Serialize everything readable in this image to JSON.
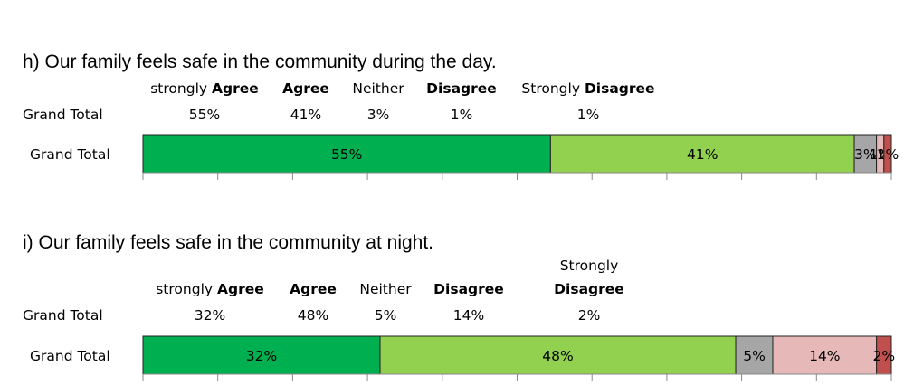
{
  "chart_data": [
    {
      "type": "bar",
      "orientation": "horizontal-stacked-100",
      "title": "h) Our family feels safe in the community during the day.",
      "row_label": "Grand Total",
      "categories": [
        {
          "prefix": "strongly ",
          "bold": "Agree",
          "value": 55,
          "color": "#00b050",
          "label": "55%"
        },
        {
          "prefix": "",
          "bold": "Agree",
          "value": 41,
          "color": "#92d050",
          "label": "41%"
        },
        {
          "prefix": "Neither",
          "bold": "",
          "value": 3,
          "color": "#a6a6a6",
          "label": "3%"
        },
        {
          "prefix": "",
          "bold": "Disagree",
          "value": 1,
          "color": "#e6b9b8",
          "label": "1%"
        },
        {
          "prefix": "Strongly ",
          "bold": "Disagree",
          "value": 1,
          "color": "#c0504d",
          "label": "1%"
        }
      ],
      "table_row_label": "Grand Total",
      "xlim": [
        0,
        100
      ]
    },
    {
      "type": "bar",
      "orientation": "horizontal-stacked-100",
      "title": "i) Our family feels safe in the community at night.",
      "row_label": "Grand Total",
      "categories": [
        {
          "prefix": "strongly ",
          "bold": "Agree",
          "value": 32,
          "color": "#00b050",
          "label": "32%"
        },
        {
          "prefix": "",
          "bold": "Agree",
          "value": 48,
          "color": "#92d050",
          "label": "48%"
        },
        {
          "prefix": "Neither",
          "bold": "",
          "value": 5,
          "color": "#a6a6a6",
          "label": "5%"
        },
        {
          "prefix": "",
          "bold": "Disagree",
          "value": 14,
          "color": "#e6b9b8",
          "label": "14%"
        },
        {
          "prefix": "Strongly",
          "bold": "Disagree",
          "value": 2,
          "color": "#c0504d",
          "label": "2%",
          "stacked_header": true
        }
      ],
      "table_row_label": "Grand Total",
      "xlim": [
        0,
        100
      ]
    }
  ]
}
